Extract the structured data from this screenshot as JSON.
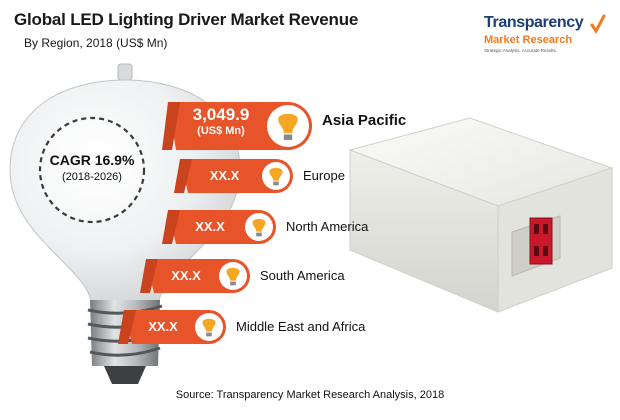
{
  "header": {
    "title": "Global LED Lighting Driver Market Revenue",
    "subtitle": "By Region, 2018 (US$ Mn)"
  },
  "logo": {
    "line1": "Transparency",
    "line2": "Market Research",
    "tagline": "Strategic Analysis. Accurate Results."
  },
  "cagr": {
    "label": "CAGR 16.9%",
    "period": "(2018-2026)"
  },
  "source": "Source: Transparency Market Research Analysis, 2018",
  "colors": {
    "bar": "#e8542a",
    "bar_dark": "#c9431f",
    "bulb_icon": "#f5a623",
    "text": "#111111"
  },
  "chart_data": {
    "type": "bar",
    "title": "Global LED Lighting Driver Market Revenue",
    "subtitle": "By Region, 2018 (US$ Mn)",
    "categories": [
      "Asia Pacific",
      "Europe",
      "North America",
      "South America",
      "Middle East and Africa"
    ],
    "value_labels": [
      "3,049.9",
      "XX.X",
      "XX.X",
      "XX.X",
      "XX.X"
    ],
    "value_unit": "(US$ Mn)",
    "values": [
      3049.9,
      null,
      null,
      null,
      null
    ]
  }
}
